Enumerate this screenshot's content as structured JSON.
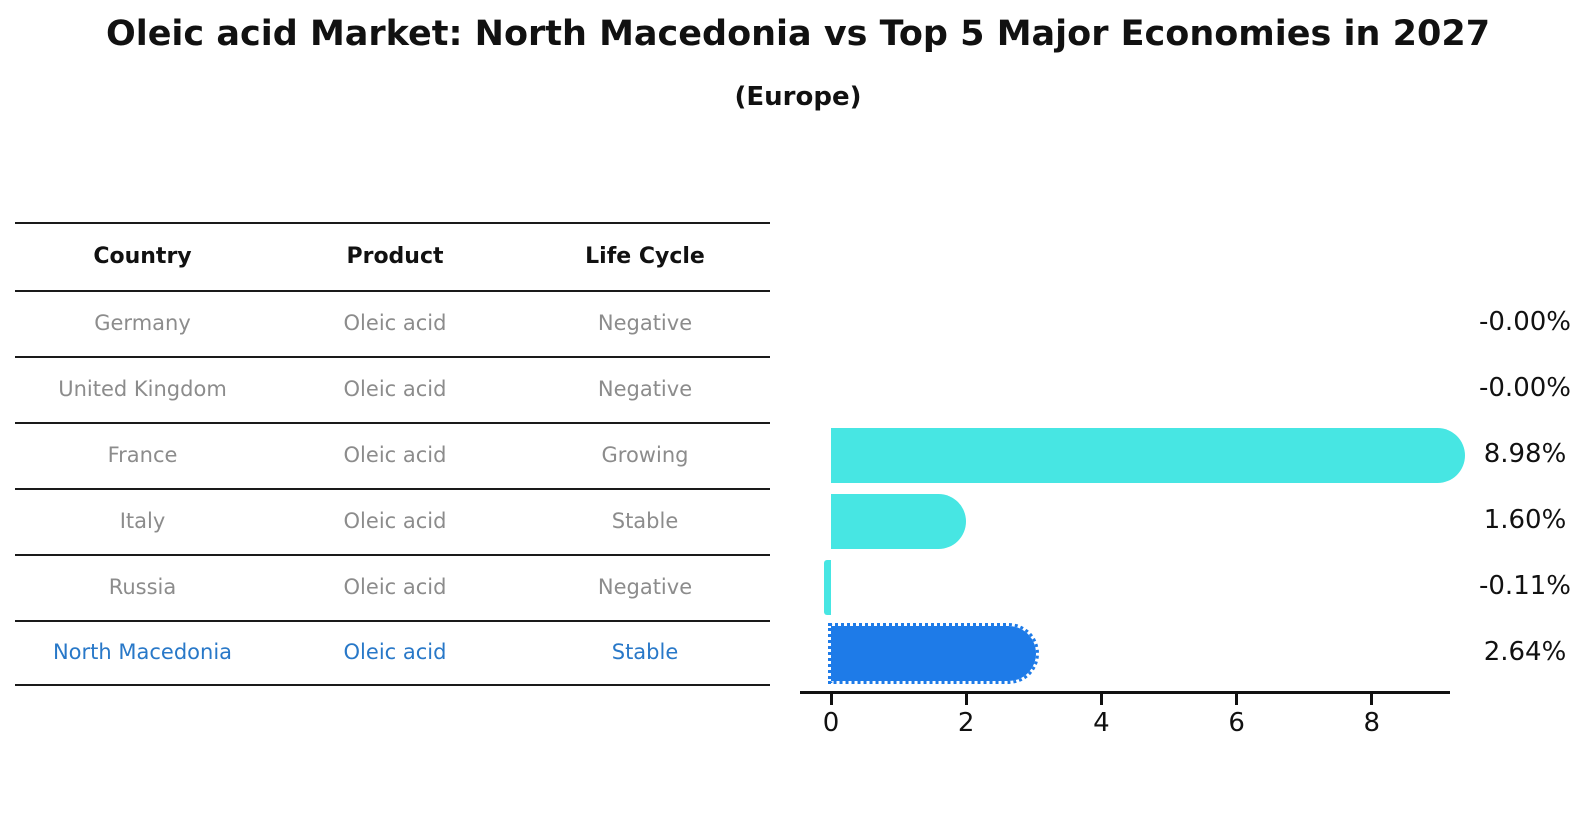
{
  "title": "Oleic acid Market: North Macedonia vs Top 5 Major Economies in 2027",
  "subtitle": "(Europe)",
  "table": {
    "headers": [
      "Country",
      "Product",
      "Life Cycle"
    ],
    "rows": [
      {
        "country": "Germany",
        "product": "Oleic acid",
        "life_cycle": "Negative",
        "highlight": false
      },
      {
        "country": "United Kingdom",
        "product": "Oleic acid",
        "life_cycle": "Negative",
        "highlight": false
      },
      {
        "country": "France",
        "product": "Oleic acid",
        "life_cycle": "Growing",
        "highlight": false
      },
      {
        "country": "Italy",
        "product": "Oleic acid",
        "life_cycle": "Stable",
        "highlight": false
      },
      {
        "country": "Russia",
        "product": "Oleic acid",
        "life_cycle": "Negative",
        "highlight": false
      },
      {
        "country": "North Macedonia",
        "product": "Oleic acid",
        "life_cycle": "Stable",
        "highlight": true
      }
    ]
  },
  "chart_data": {
    "type": "bar",
    "orientation": "horizontal",
    "title": "Oleic acid Market: North Macedonia vs Top 5 Major Economies in 2027",
    "subtitle": "(Europe)",
    "categories": [
      "Germany",
      "United Kingdom",
      "France",
      "Italy",
      "Russia",
      "North Macedonia"
    ],
    "values": [
      -0.0,
      -0.0,
      8.98,
      1.6,
      -0.11,
      2.64
    ],
    "value_labels": [
      "-0.00%",
      "-0.00%",
      "8.98%",
      "1.60%",
      "-0.11%",
      "2.64%"
    ],
    "x_ticks": [
      0,
      2,
      4,
      6,
      8
    ],
    "x_tick_labels": [
      "0",
      "2",
      "4",
      "6",
      "8"
    ],
    "xlim": [
      -0.46,
      9.16
    ],
    "xlabel": "",
    "ylabel": "",
    "grid": false,
    "legend": null,
    "highlight_index": 5,
    "colors": {
      "bar_default": "#47e6e3",
      "bar_highlight": "#1e7be8",
      "highlight_text": "#2878c8",
      "row_text": "#8c8c8c",
      "axis_text": "#111111",
      "line": "#1a1a1a",
      "background": "#ffffff"
    }
  }
}
